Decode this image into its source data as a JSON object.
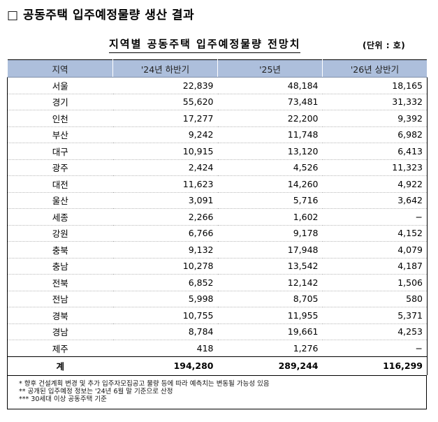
{
  "heading": "□ 공동주택 입주예정물량 생산 결과",
  "subtitle": "지역별 공동주택 입주예정물량 전망치",
  "unit": "(단위 : 호)",
  "table": {
    "headers": [
      "지역",
      "'24년 하반기",
      "'25년",
      "'26년 상반기"
    ],
    "rows": [
      [
        "서울",
        "22,839",
        "48,184",
        "18,165"
      ],
      [
        "경기",
        "55,620",
        "73,481",
        "31,332"
      ],
      [
        "인천",
        "17,277",
        "22,200",
        "9,392"
      ],
      [
        "부산",
        "9,242",
        "11,748",
        "6,982"
      ],
      [
        "대구",
        "10,915",
        "13,120",
        "6,413"
      ],
      [
        "광주",
        "2,424",
        "4,526",
        "11,323"
      ],
      [
        "대전",
        "11,623",
        "14,260",
        "4,922"
      ],
      [
        "울산",
        "3,091",
        "5,716",
        "3,642"
      ],
      [
        "세종",
        "2,266",
        "1,602",
        "−"
      ],
      [
        "강원",
        "6,766",
        "9,178",
        "4,152"
      ],
      [
        "충북",
        "9,132",
        "17,948",
        "4,079"
      ],
      [
        "충남",
        "10,278",
        "13,542",
        "4,187"
      ],
      [
        "전북",
        "6,852",
        "12,142",
        "1,506"
      ],
      [
        "전남",
        "5,998",
        "8,705",
        "580"
      ],
      [
        "경북",
        "10,755",
        "11,955",
        "5,371"
      ],
      [
        "경남",
        "8,784",
        "19,661",
        "4,253"
      ],
      [
        "제주",
        "418",
        "1,276",
        "−"
      ]
    ],
    "total": [
      "계",
      "194,280",
      "289,244",
      "116,299"
    ]
  },
  "notes": [
    "* 향후 건설계획 변경 및 추가 입주자모집공고 물량 등에 따라 예측치는 변동될 가능성 있음",
    "** 공개된 입주예정 정보는 '24년 6월 말 기준으로 산정",
    "*** 30세대 이상 공동주택 기준"
  ]
}
